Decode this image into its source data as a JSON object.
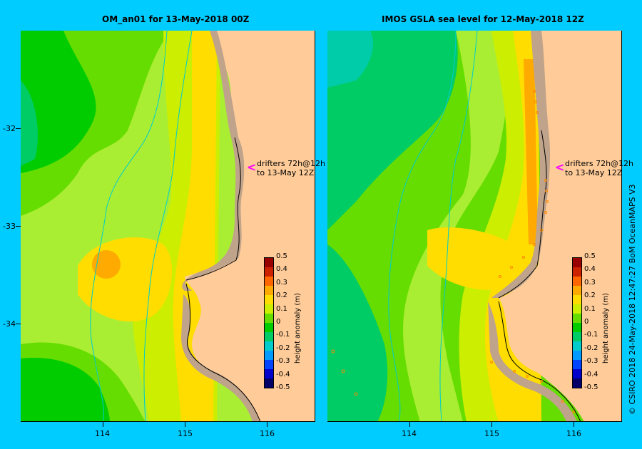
{
  "left_panel": {
    "title": "OM_an01  for 13-May-2018 00Z",
    "annotation_line1": "drifters 72h@12h",
    "annotation_line2": "to 13-May 12Z"
  },
  "right_panel": {
    "title": "IMOS  GSLA sea level   for 12-May-2018 12Z",
    "annotation_line1": "drifters 72h@12h",
    "annotation_line2": "to 13-May 12Z"
  },
  "y_axis_ticks": [
    "-32",
    "-33",
    "-34"
  ],
  "x_axis_ticks": [
    "114",
    "115",
    "116"
  ],
  "colorbar": {
    "label": "height anomaly (m)",
    "ticks": [
      "0.5",
      "0.4",
      "0.3",
      "0.2",
      "0.1",
      "0",
      "-0.1",
      "-0.2",
      "-0.3",
      "-0.4",
      "-0.5"
    ],
    "colors": [
      "#000066",
      "#0000cc",
      "#0044ff",
      "#0099ff",
      "#00cccc",
      "#00cc66",
      "#00cc00",
      "#66dd00",
      "#ccee00",
      "#ffdd00",
      "#ffaa00",
      "#ff6600",
      "#cc2200",
      "#990000"
    ]
  },
  "credit": "© CSIRO 2018   24-May-2018 12:47:27 BoM OceanMAPS V3"
}
